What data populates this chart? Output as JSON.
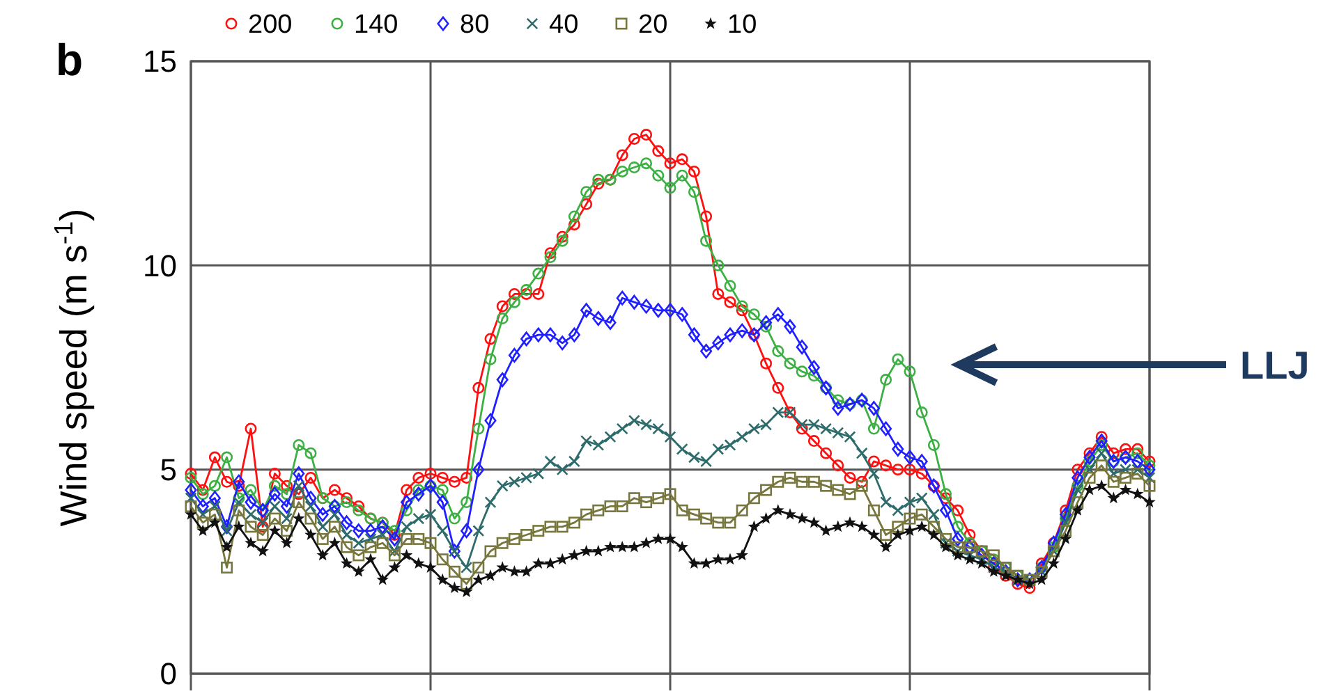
{
  "chart_data": {
    "type": "line",
    "title": "b",
    "ylabel": "Wind speed (m s$^{-1}$)",
    "categories": [
      null,
      null,
      null,
      null,
      null,
      null,
      null,
      null,
      null,
      null,
      null,
      null,
      null,
      null,
      null,
      null,
      null,
      null,
      null,
      null,
      null,
      null,
      null,
      null,
      null,
      null,
      null,
      null,
      null,
      null,
      null,
      null,
      null,
      null,
      null,
      null,
      null,
      null,
      null,
      null,
      null,
      null,
      null,
      null,
      null,
      null,
      null,
      null,
      null,
      null,
      null,
      null,
      null,
      null,
      null,
      null,
      null,
      null,
      null,
      null,
      null,
      null,
      null,
      null,
      null,
      null,
      null,
      null,
      null,
      null,
      null,
      null,
      null,
      null,
      null,
      null,
      null,
      null,
      null,
      null,
      null
    ],
    "ylim": [
      0,
      15
    ],
    "yticks": [
      0,
      5,
      10,
      15
    ],
    "grid": true,
    "legend": "top left",
    "tick_labels": "y",
    "line_style": "solid",
    "annotations": [
      "LLJ"
    ],
    "series": [
      {
        "name": "200",
        "color": "#ff1010",
        "marker": "circle",
        "values": [
          4.9,
          4.5,
          5.3,
          4.7,
          4.6,
          6.0,
          3.6,
          4.9,
          4.6,
          4.4,
          4.8,
          4.3,
          4.5,
          4.3,
          4.1,
          3.8,
          3.7,
          3.4,
          4.5,
          4.8,
          4.9,
          4.8,
          4.7,
          4.8,
          7.0,
          8.2,
          9.0,
          9.3,
          9.3,
          9.3,
          10.3,
          10.7,
          11.0,
          11.5,
          12.0,
          12.1,
          12.7,
          13.1,
          13.2,
          12.8,
          12.5,
          12.6,
          12.3,
          11.2,
          9.3,
          9.1,
          8.9,
          8.3,
          7.6,
          7.0,
          6.4,
          6.0,
          5.7,
          5.4,
          5.1,
          4.8,
          4.7,
          5.2,
          5.1,
          5.0,
          5.0,
          4.9,
          4.6,
          4.3,
          4.0,
          3.4,
          3.0,
          2.6,
          2.4,
          2.2,
          2.1,
          2.7,
          3.2,
          4.0,
          5.0,
          5.4,
          5.8,
          5.4,
          5.5,
          5.5,
          5.2
        ]
      },
      {
        "name": "140",
        "color": "#3cb043",
        "marker": "circle",
        "values": [
          4.8,
          4.4,
          4.6,
          5.3,
          4.3,
          4.5,
          4.0,
          4.6,
          4.4,
          5.6,
          5.4,
          4.3,
          4.1,
          4.2,
          4.0,
          3.8,
          3.7,
          3.5,
          4.0,
          4.5,
          4.6,
          4.5,
          3.8,
          4.2,
          6.0,
          7.7,
          8.7,
          9.1,
          9.4,
          9.8,
          10.2,
          10.6,
          11.2,
          11.8,
          12.1,
          12.1,
          12.3,
          12.4,
          12.5,
          12.2,
          11.9,
          12.2,
          11.8,
          10.6,
          10.0,
          9.5,
          9.0,
          8.8,
          8.5,
          7.9,
          7.6,
          7.4,
          7.3,
          7.0,
          6.7,
          6.6,
          6.7,
          6.0,
          7.2,
          7.7,
          7.4,
          6.4,
          5.6,
          4.4,
          3.6,
          3.2,
          3.0,
          2.8,
          2.6,
          2.4,
          2.3,
          2.6,
          3.1,
          3.8,
          4.6,
          5.2,
          5.6,
          5.2,
          5.3,
          5.4,
          5.1
        ]
      },
      {
        "name": "80",
        "color": "#2020ff",
        "marker": "diamond",
        "values": [
          4.5,
          4.1,
          4.3,
          3.6,
          4.7,
          4.2,
          4.0,
          4.4,
          4.1,
          4.9,
          4.3,
          3.9,
          4.1,
          3.7,
          3.5,
          3.5,
          3.6,
          3.3,
          4.2,
          4.4,
          4.6,
          4.2,
          3.0,
          3.5,
          5.0,
          6.2,
          7.2,
          7.8,
          8.2,
          8.3,
          8.3,
          8.1,
          8.3,
          8.9,
          8.7,
          8.6,
          9.2,
          9.1,
          9.0,
          8.9,
          8.9,
          8.8,
          8.3,
          7.9,
          8.1,
          8.3,
          8.4,
          8.3,
          8.6,
          8.8,
          8.5,
          8.0,
          7.5,
          7.0,
          6.5,
          6.6,
          6.7,
          6.5,
          6.0,
          5.5,
          5.3,
          5.2,
          4.6,
          4.0,
          3.3,
          3.1,
          2.9,
          2.7,
          2.5,
          2.3,
          2.3,
          2.6,
          3.2,
          3.9,
          4.8,
          5.3,
          5.7,
          5.2,
          5.3,
          5.2,
          5.0
        ]
      },
      {
        "name": "40",
        "color": "#2e6b6b",
        "marker": "cross",
        "values": [
          4.3,
          3.9,
          4.1,
          3.5,
          4.2,
          3.9,
          3.7,
          4.1,
          3.8,
          4.6,
          4.1,
          3.6,
          3.9,
          3.4,
          3.2,
          3.3,
          3.4,
          3.0,
          3.6,
          3.8,
          3.9,
          3.5,
          3.0,
          2.6,
          3.5,
          4.2,
          4.6,
          4.7,
          4.8,
          4.9,
          5.2,
          5.0,
          5.2,
          5.7,
          5.6,
          5.8,
          6.0,
          6.2,
          6.1,
          6.0,
          5.8,
          5.5,
          5.3,
          5.2,
          5.5,
          5.6,
          5.8,
          6.0,
          6.1,
          6.4,
          6.4,
          6.1,
          6.1,
          6.0,
          5.9,
          5.8,
          5.4,
          4.9,
          4.2,
          4.0,
          4.2,
          4.3,
          3.9,
          3.2,
          3.0,
          2.9,
          2.8,
          2.6,
          2.5,
          2.3,
          2.3,
          2.5,
          3.0,
          3.7,
          4.5,
          5.0,
          5.4,
          4.9,
          5.0,
          5.0,
          4.8
        ]
      },
      {
        "name": "20",
        "color": "#77763c",
        "marker": "square",
        "values": [
          4.1,
          3.7,
          3.9,
          2.6,
          4.0,
          3.6,
          3.4,
          3.8,
          3.5,
          4.2,
          3.8,
          3.3,
          3.6,
          3.1,
          2.9,
          3.1,
          3.2,
          2.9,
          3.3,
          3.3,
          3.2,
          2.8,
          2.5,
          2.2,
          2.6,
          3.0,
          3.2,
          3.3,
          3.4,
          3.5,
          3.6,
          3.6,
          3.7,
          3.9,
          4.0,
          4.1,
          4.1,
          4.3,
          4.2,
          4.3,
          4.4,
          4.0,
          3.9,
          3.8,
          3.7,
          3.7,
          4.0,
          4.3,
          4.5,
          4.7,
          4.8,
          4.7,
          4.7,
          4.6,
          4.5,
          4.4,
          4.6,
          4.0,
          3.4,
          3.6,
          3.8,
          3.9,
          3.6,
          3.3,
          3.1,
          3.1,
          3.0,
          2.9,
          2.6,
          2.4,
          2.3,
          2.5,
          3.0,
          3.5,
          4.2,
          4.8,
          5.1,
          4.7,
          4.8,
          4.9,
          4.6
        ]
      },
      {
        "name": "10",
        "color": "#111111",
        "marker": "star",
        "values": [
          3.9,
          3.5,
          3.7,
          3.1,
          3.6,
          3.2,
          3.0,
          3.5,
          3.2,
          3.8,
          3.4,
          2.9,
          3.2,
          2.7,
          2.5,
          2.8,
          2.3,
          2.6,
          2.9,
          2.7,
          2.6,
          2.3,
          2.1,
          2.0,
          2.3,
          2.4,
          2.6,
          2.5,
          2.5,
          2.7,
          2.7,
          2.8,
          2.9,
          3.0,
          3.0,
          3.1,
          3.1,
          3.1,
          3.2,
          3.3,
          3.3,
          3.1,
          2.7,
          2.7,
          2.8,
          2.8,
          2.9,
          3.6,
          3.8,
          4.0,
          3.9,
          3.8,
          3.7,
          3.5,
          3.6,
          3.7,
          3.6,
          3.4,
          3.1,
          3.4,
          3.5,
          3.6,
          3.4,
          3.1,
          2.9,
          2.8,
          2.7,
          2.5,
          2.4,
          2.3,
          2.2,
          2.3,
          2.7,
          3.3,
          4.0,
          4.5,
          4.6,
          4.3,
          4.5,
          4.4,
          4.2
        ]
      }
    ]
  }
}
